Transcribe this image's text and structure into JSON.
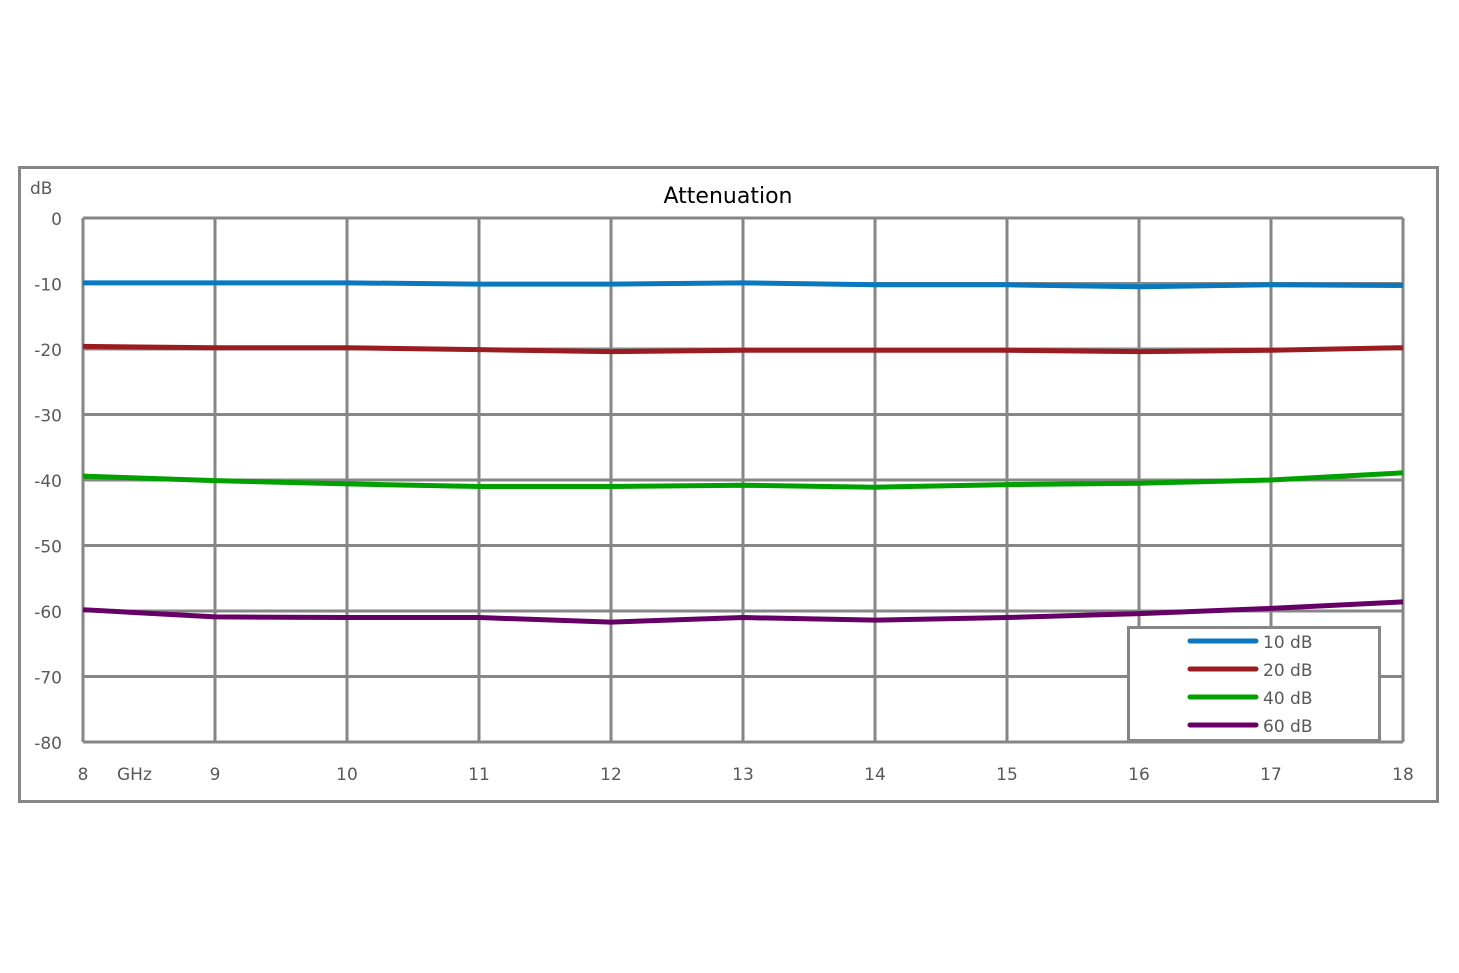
{
  "chart_data": {
    "type": "line",
    "title": "Attenuation",
    "ylabel": "dB",
    "xlabel": "GHz",
    "xlim": [
      8,
      18
    ],
    "ylim": [
      -80,
      0
    ],
    "x_ticks": [
      8,
      9,
      10,
      11,
      12,
      13,
      14,
      15,
      16,
      17,
      18
    ],
    "y_ticks": [
      0,
      -10,
      -20,
      -30,
      -40,
      -50,
      -60,
      -70,
      -80
    ],
    "grid": true,
    "legend_position": "bottom-right",
    "x": [
      8,
      9,
      10,
      11,
      12,
      13,
      14,
      15,
      16,
      17,
      18
    ],
    "series": [
      {
        "name": "10 dB",
        "color": "#0a78be",
        "values": [
          -9.9,
          -9.9,
          -9.9,
          -10.1,
          -10.1,
          -9.9,
          -10.2,
          -10.2,
          -10.5,
          -10.2,
          -10.3
        ]
      },
      {
        "name": "20 dB",
        "color": "#9b1c20",
        "values": [
          -19.6,
          -19.8,
          -19.8,
          -20.1,
          -20.4,
          -20.2,
          -20.2,
          -20.2,
          -20.4,
          -20.2,
          -19.8
        ]
      },
      {
        "name": "40 dB",
        "color": "#00a000",
        "values": [
          -39.4,
          -40.1,
          -40.6,
          -41.0,
          -41.0,
          -40.8,
          -41.1,
          -40.7,
          -40.5,
          -40.0,
          -38.9
        ]
      },
      {
        "name": "60 dB",
        "color": "#660066",
        "values": [
          -59.8,
          -60.9,
          -61.0,
          -61.0,
          -61.7,
          -61.0,
          -61.4,
          -61.0,
          -60.4,
          -59.6,
          -58.6
        ]
      }
    ]
  }
}
